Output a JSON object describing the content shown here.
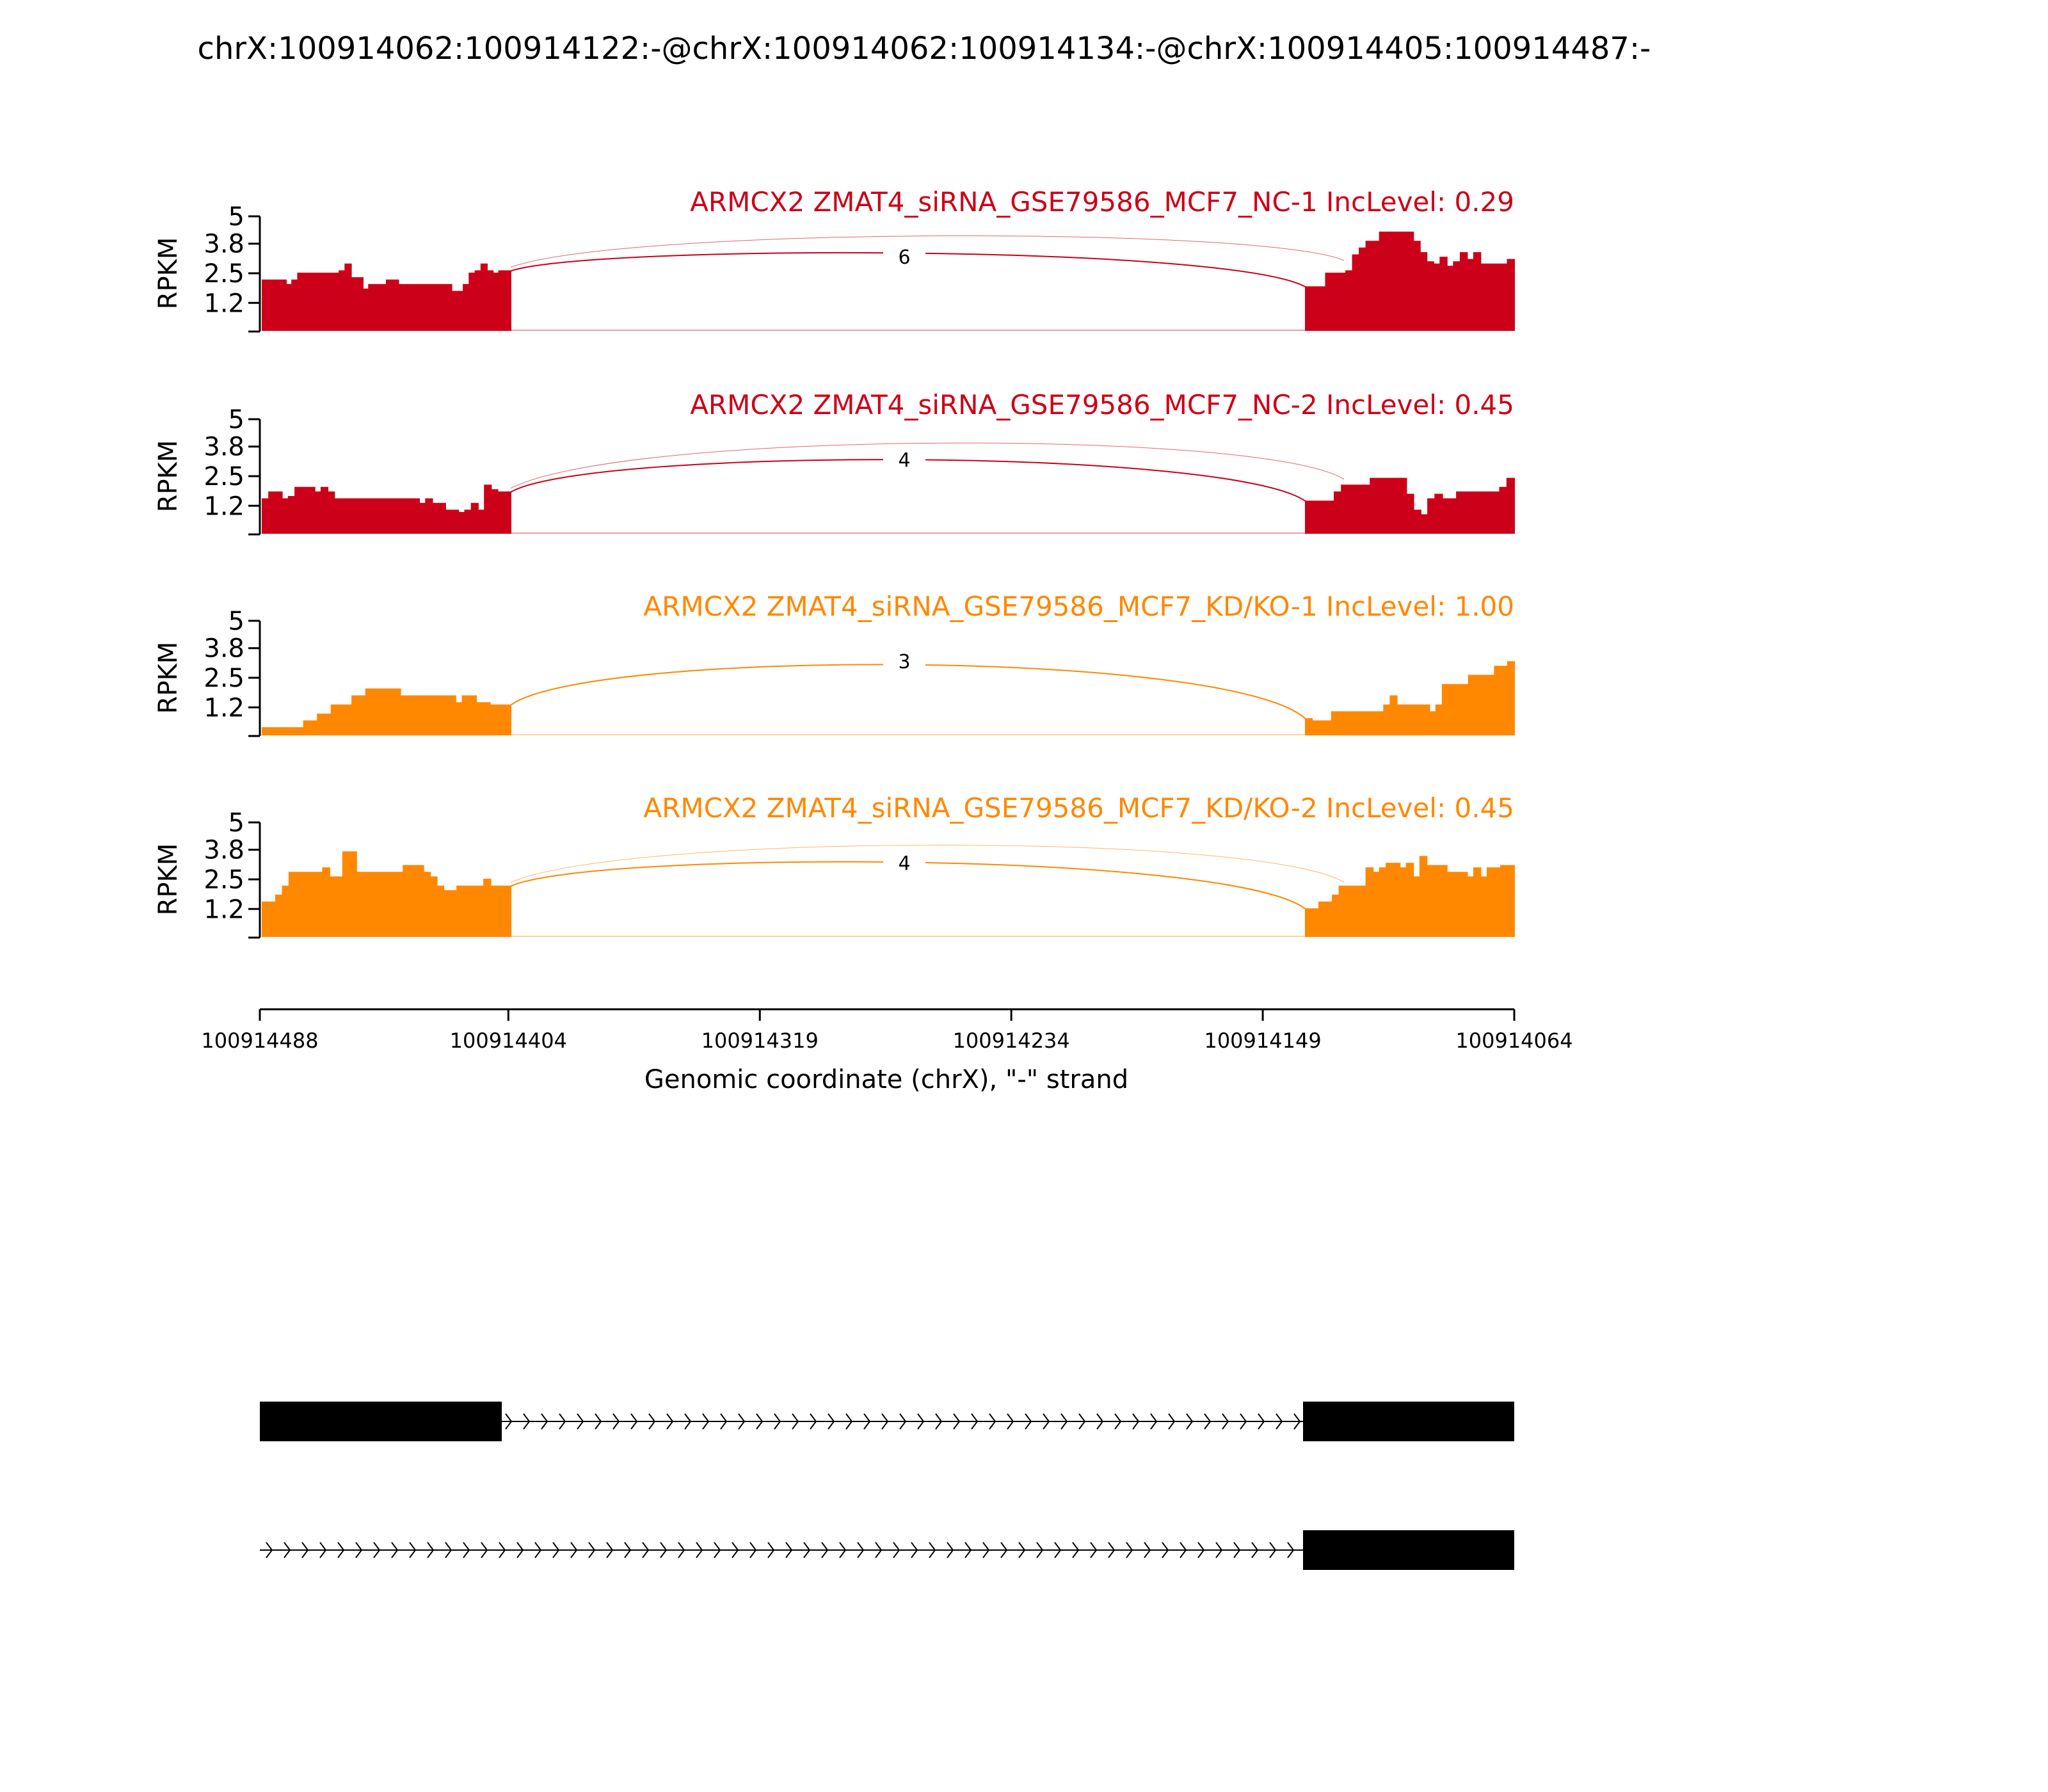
{
  "figure_title": "chrX:100914062:100914122:-@chrX:100914062:100914134:-@chrX:100914405:100914487:-",
  "colors": {
    "control": "#cc0018",
    "treatment": "#ff8800",
    "axis": "#000000"
  },
  "chart_data": {
    "type": "area",
    "title": "chrX:100914062:100914122:-@chrX:100914062:100914134:-@chrX:100914405:100914487:-",
    "xlabel": "Genomic coordinate (chrX), \"-\" strand",
    "ylabel": "RPKM",
    "ylim": [
      0,
      5
    ],
    "yticks": [
      "5",
      "3.8",
      "2.5",
      "1.2"
    ],
    "ytick_values": [
      5,
      3.8,
      2.5,
      1.2
    ],
    "xlim": [
      100914488,
      100914064
    ],
    "xticks": [
      "100914488",
      "100914404",
      "100914319",
      "100914234",
      "100914149",
      "100914064"
    ],
    "tracks": [
      {
        "label": "ARMCX2 ZMAT4_siRNA_GSE79586_MCF7_NC-1 IncLevel: 0.29",
        "group": "control",
        "junction_counts": [
          "6"
        ],
        "exon1": [
          2.2,
          2.2,
          2.2,
          2.2,
          2.0,
          2.2,
          2.5,
          2.5,
          2.5,
          2.5,
          2.5,
          2.5,
          2.5,
          2.6,
          2.9,
          2.3,
          2.3,
          1.8,
          2.0,
          2.0,
          2.0,
          2.2,
          2.2,
          2.0,
          2.0,
          2.0,
          2.0,
          2.0,
          2.0,
          2.0,
          2.0,
          2.0,
          1.7,
          1.7,
          2.0,
          2.5,
          2.6,
          2.9,
          2.6,
          2.5,
          2.6,
          2.6
        ],
        "exon2": [
          1.9,
          1.9,
          1.9,
          2.5,
          2.5,
          2.5,
          2.6,
          3.3,
          3.6,
          3.9,
          3.9,
          4.3,
          4.3,
          4.3,
          4.3,
          4.3,
          3.9,
          3.4,
          3.0,
          2.9,
          3.2,
          2.8,
          3.0,
          3.4,
          3.1,
          3.4,
          2.9,
          2.9,
          2.9,
          2.9,
          3.1
        ]
      },
      {
        "label": "ARMCX2 ZMAT4_siRNA_GSE79586_MCF7_NC-2 IncLevel: 0.45",
        "group": "control",
        "junction_counts": [
          "4"
        ],
        "exon1": [
          1.5,
          1.8,
          1.8,
          1.5,
          1.6,
          2.0,
          2.0,
          2.0,
          1.8,
          2.0,
          1.8,
          1.5,
          1.5,
          1.5,
          1.5,
          1.5,
          1.5,
          1.5,
          1.5,
          1.5,
          1.5,
          1.5,
          1.5,
          1.5,
          1.3,
          1.5,
          1.3,
          1.3,
          1.0,
          1.0,
          0.9,
          1.0,
          1.3,
          1.0,
          2.1,
          1.9,
          1.8,
          1.8
        ],
        "exon2": [
          1.4,
          1.4,
          1.4,
          1.4,
          1.8,
          2.1,
          2.1,
          2.1,
          2.1,
          2.4,
          2.4,
          2.4,
          2.4,
          2.4,
          1.7,
          1.0,
          0.8,
          1.5,
          1.7,
          1.5,
          1.5,
          1.8,
          1.8,
          1.8,
          1.8,
          1.8,
          1.8,
          2.0,
          2.4
        ]
      },
      {
        "label": "ARMCX2 ZMAT4_siRNA_GSE79586_MCF7_KD/KO-1 IncLevel: 1.00",
        "group": "treatment",
        "junction_counts": [
          "3"
        ],
        "exon1": [
          0.3,
          0.3,
          0.3,
          0.3,
          0.3,
          0.3,
          0.6,
          0.6,
          0.9,
          0.9,
          1.3,
          1.3,
          1.3,
          1.7,
          1.7,
          2.0,
          2.0,
          2.0,
          2.0,
          2.0,
          1.7,
          1.7,
          1.7,
          1.7,
          1.7,
          1.7,
          1.7,
          1.7,
          1.4,
          1.7,
          1.7,
          1.4,
          1.4,
          1.3,
          1.3,
          1.3
        ],
        "exon2": [
          0.7,
          0.6,
          0.6,
          0.6,
          1.0,
          1.0,
          1.0,
          1.0,
          1.0,
          1.0,
          1.0,
          1.0,
          1.3,
          1.7,
          1.3,
          1.3,
          1.3,
          1.3,
          1.3,
          1.0,
          1.3,
          2.2,
          2.2,
          2.2,
          2.2,
          2.6,
          2.6,
          2.6,
          2.6,
          3.0,
          3.0,
          3.2
        ]
      },
      {
        "label": "ARMCX2 ZMAT4_siRNA_GSE79586_MCF7_KD/KO-2 IncLevel: 0.45",
        "group": "treatment",
        "junction_counts": [
          "4"
        ],
        "exon1": [
          1.5,
          1.5,
          1.8,
          2.2,
          2.8,
          2.8,
          2.8,
          2.8,
          2.8,
          3.0,
          2.6,
          2.6,
          3.7,
          3.7,
          2.8,
          2.8,
          2.8,
          2.8,
          2.8,
          2.8,
          2.8,
          3.1,
          3.1,
          3.1,
          2.8,
          2.6,
          2.2,
          2.0,
          2.0,
          2.2,
          2.2,
          2.2,
          2.2,
          2.5,
          2.2,
          2.2,
          2.2
        ],
        "exon2": [
          1.2,
          1.2,
          1.5,
          1.5,
          1.8,
          2.2,
          2.2,
          2.2,
          2.2,
          3.0,
          2.8,
          3.0,
          3.2,
          3.2,
          3.0,
          3.2,
          2.6,
          3.5,
          3.1,
          3.1,
          3.1,
          2.8,
          2.8,
          2.8,
          2.6,
          3.0,
          2.6,
          3.0,
          3.0,
          3.1,
          3.1
        ]
      }
    ],
    "isoforms": [
      "exon 100914405–100914487 + exon 100914062–100914134",
      "exon 100914062–100914134 only"
    ]
  }
}
